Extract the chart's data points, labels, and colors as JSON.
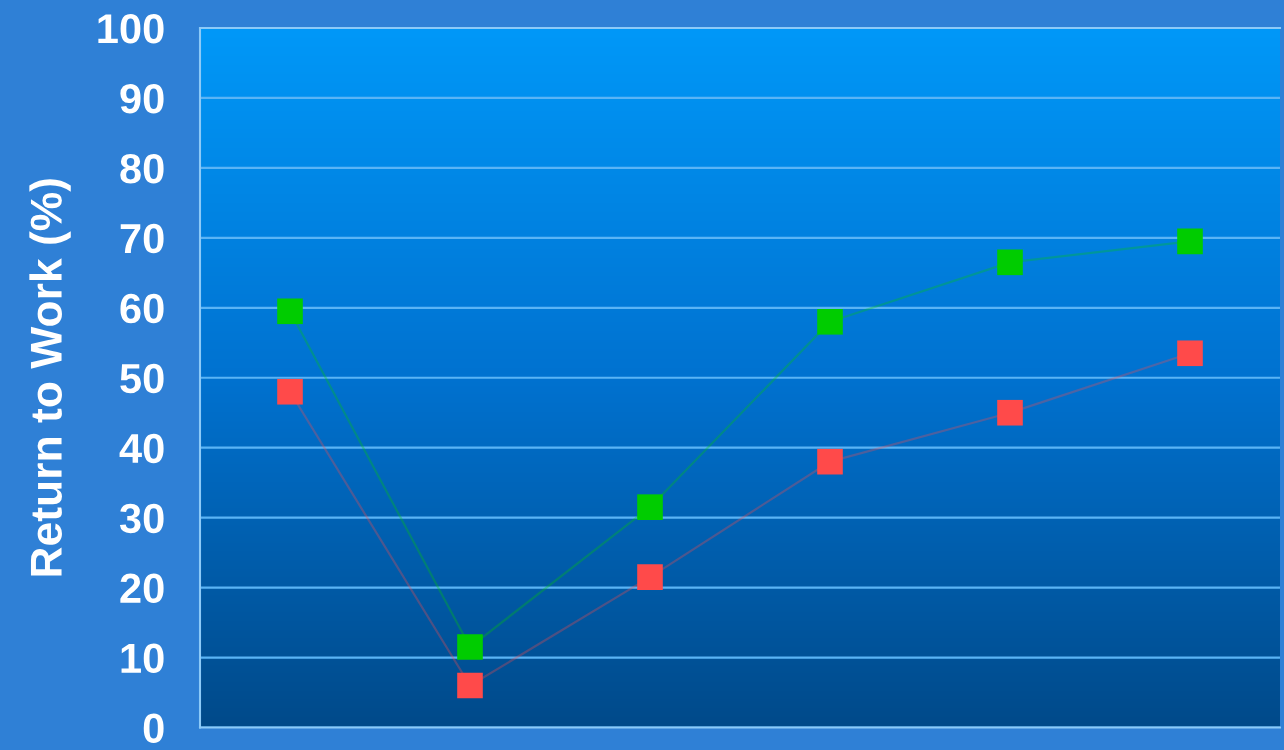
{
  "chart_data": {
    "type": "line",
    "ylabel": "Return to Work (%)",
    "categories": [
      null,
      null,
      null,
      null,
      null,
      null
    ],
    "series": [
      {
        "color": "#00cc00",
        "values": [
          59.5,
          11.5,
          31.5,
          58,
          66.5,
          69.5
        ]
      },
      {
        "color": "#ff4a4a",
        "values": [
          48,
          6,
          21.5,
          38,
          45,
          53.5
        ]
      }
    ],
    "ylim": [
      0,
      100
    ],
    "yticks": [
      0,
      10,
      20,
      30,
      40,
      50,
      60,
      70,
      80,
      90,
      100
    ],
    "grid": "y",
    "marker": "square",
    "tick_labels": "y"
  }
}
